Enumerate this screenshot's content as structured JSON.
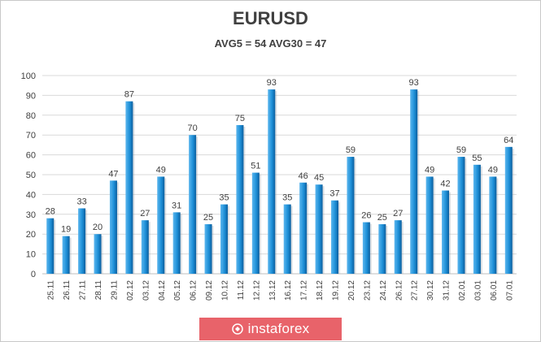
{
  "chart_data": {
    "type": "bar",
    "title": "EURUSD",
    "subtitle": "AVG5 = 54 AVG30 = 47",
    "categories": [
      "25.11",
      "26.11",
      "27.11",
      "28.11",
      "29.11",
      "02.12",
      "03.12",
      "04.12",
      "05.12",
      "06.12",
      "09.12",
      "10.12",
      "11.12",
      "12.12",
      "13.12",
      "16.12",
      "17.12",
      "18.12",
      "19.12",
      "20.12",
      "23.12",
      "24.12",
      "26.12",
      "27.12",
      "30.12",
      "31.12",
      "02.01",
      "03.01",
      "06.01",
      "07.01"
    ],
    "values": [
      28,
      19,
      33,
      20,
      47,
      87,
      27,
      49,
      31,
      70,
      25,
      35,
      75,
      51,
      93,
      35,
      46,
      45,
      37,
      59,
      26,
      25,
      27,
      93,
      49,
      42,
      59,
      55,
      49,
      64
    ],
    "ylim": [
      0,
      100
    ],
    "yticks": [
      0,
      10,
      20,
      30,
      40,
      50,
      60,
      70,
      80,
      90,
      100
    ],
    "grid": true,
    "bar_color": "#1e90d8",
    "bar_color_dark": "#0b5e9e",
    "bar_color_light": "#5bb6ee"
  },
  "watermark": {
    "text": "instaforex",
    "color": "#e8636a"
  }
}
